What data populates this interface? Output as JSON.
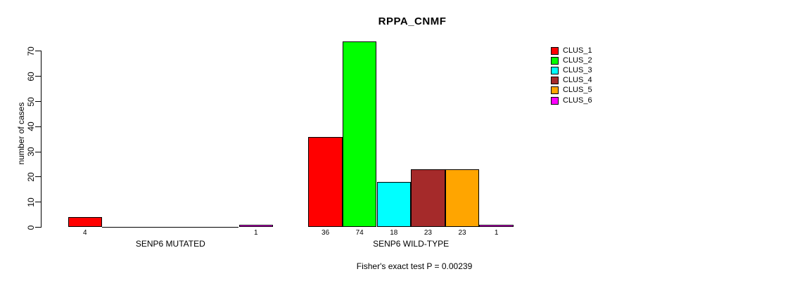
{
  "chart_data": {
    "type": "bar",
    "title": "RPPA_CNMF",
    "xlabel": "",
    "ylabel": "number of cases",
    "yticks": [
      0,
      10,
      20,
      30,
      40,
      50,
      60,
      70
    ],
    "ylim": [
      0,
      74
    ],
    "grid": false,
    "legend_position": "right",
    "categories": [
      "SENP6 MUTATED",
      "SENP6 WILD-TYPE"
    ],
    "series": [
      {
        "name": "CLUS_1",
        "color": "#ff0000",
        "values": [
          4,
          36
        ]
      },
      {
        "name": "CLUS_2",
        "color": "#00ff00",
        "values": [
          0,
          74
        ]
      },
      {
        "name": "CLUS_3",
        "color": "#00ffff",
        "values": [
          0,
          18
        ]
      },
      {
        "name": "CLUS_4",
        "color": "#a52a2a",
        "values": [
          0,
          23
        ]
      },
      {
        "name": "CLUS_5",
        "color": "#ffa500",
        "values": [
          0,
          23
        ]
      },
      {
        "name": "CLUS_6",
        "color": "#ff00ff",
        "values": [
          1,
          1
        ]
      }
    ],
    "bar_labels_shown_for_zero": false,
    "annotation": "Fisher's exact test P = 0.00239"
  },
  "colors": {
    "background": "#ffffff",
    "axis": "#000000",
    "text": "#000000"
  }
}
